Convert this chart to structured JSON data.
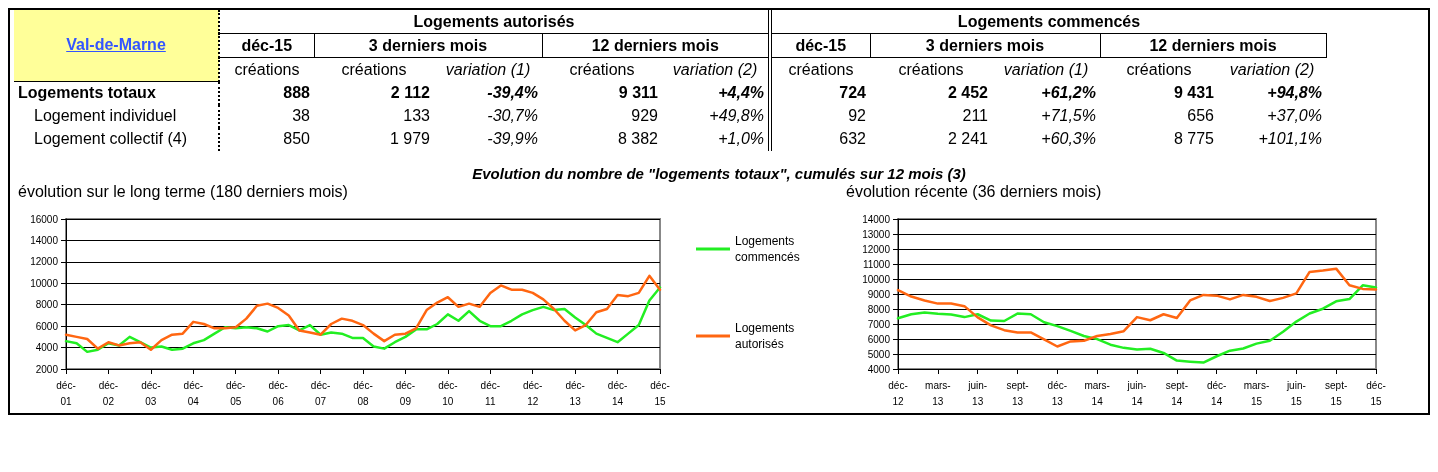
{
  "chart_data": [
    {
      "type": "other",
      "cell_labels": [
        [
          "Val-de-Marne",
          "Logements autorisés",
          null,
          null,
          null,
          null,
          "Logements commencés",
          null,
          null,
          null,
          null
        ],
        [
          null,
          "déc-15",
          "3 derniers mois",
          null,
          "12 derniers mois",
          null,
          "déc-15",
          "3 derniers mois",
          null,
          "12 derniers mois",
          null
        ],
        [
          null,
          "créations",
          "créations",
          "variation (1)",
          "créations",
          "variation (2)",
          "créations",
          "créations",
          "variation (1)",
          "créations",
          "variation (2)"
        ],
        [
          "Logements totaux",
          "888",
          "2 112",
          "-39,4%",
          "9 311",
          "+4,4%",
          "724",
          "2 452",
          "+61,2%",
          "9 431",
          "+94,8%"
        ],
        [
          "Logement individuel",
          "38",
          "133",
          "-30,7%",
          "929",
          "+49,8%",
          "92",
          "211",
          "+71,5%",
          "656",
          "+37,0%"
        ],
        [
          "Logement collectif (4)",
          "850",
          "1 979",
          "-39,9%",
          "8 382",
          "+1,0%",
          "632",
          "2 241",
          "+60,3%",
          "8 775",
          "+101,1%"
        ]
      ]
    },
    {
      "type": "line",
      "title": "Evolution du nombre de \"logements totaux\", cumulés sur 12 mois (3)",
      "subtitle": "évolution sur le long terme (180 derniers mois)",
      "x": [
        "2001-12",
        "2002-03",
        "2002-06",
        "2002-09",
        "2002-12",
        "2003-03",
        "2003-06",
        "2003-09",
        "2003-12",
        "2004-03",
        "2004-06",
        "2004-09",
        "2004-12",
        "2005-03",
        "2005-06",
        "2005-09",
        "2005-12",
        "2006-03",
        "2006-06",
        "2006-09",
        "2006-12",
        "2007-03",
        "2007-06",
        "2007-09",
        "2007-12",
        "2008-03",
        "2008-06",
        "2008-09",
        "2008-12",
        "2009-03",
        "2009-06",
        "2009-09",
        "2009-12",
        "2010-03",
        "2010-06",
        "2010-09",
        "2010-12",
        "2011-03",
        "2011-06",
        "2011-09",
        "2011-12",
        "2012-03",
        "2012-06",
        "2012-09",
        "2012-12",
        "2013-03",
        "2013-06",
        "2013-09",
        "2013-12",
        "2014-03",
        "2014-06",
        "2014-09",
        "2014-12",
        "2015-03",
        "2015-06",
        "2015-09",
        "2015-12"
      ],
      "series": [
        {
          "name": "Logements commencés",
          "color": "#22ee22",
          "values": [
            4600,
            4400,
            3600,
            3800,
            4400,
            4200,
            5000,
            4500,
            4000,
            4100,
            3800,
            3900,
            4400,
            4700,
            5300,
            5900,
            5800,
            5900,
            5800,
            5500,
            6000,
            6100,
            5600,
            6100,
            5200,
            5400,
            5300,
            4900,
            4900,
            4100,
            3900,
            4500,
            5000,
            5700,
            5700,
            6200,
            7100,
            6500,
            7400,
            6500,
            6000,
            6000,
            6500,
            7100,
            7500,
            7800,
            7500,
            7600,
            6800,
            6100,
            5300,
            4900,
            4500,
            5300,
            6100,
            8400,
            9600
          ]
        },
        {
          "name": "Logements autorisés",
          "color": "#ff6611",
          "values": [
            5200,
            5000,
            4800,
            3900,
            4500,
            4200,
            4400,
            4500,
            3800,
            4700,
            5200,
            5300,
            6400,
            6200,
            5800,
            5800,
            5900,
            6700,
            7900,
            8100,
            7700,
            7000,
            5600,
            5400,
            5200,
            6200,
            6700,
            6500,
            6100,
            5300,
            4600,
            5200,
            5300,
            5800,
            7500,
            8200,
            8700,
            7800,
            8100,
            7800,
            9100,
            9800,
            9400,
            9400,
            9100,
            8500,
            7600,
            6500,
            5600,
            6100,
            7300,
            7600,
            8900,
            8800,
            9100,
            10700,
            9400
          ]
        }
      ],
      "xlim": [
        "2001-12",
        "2015-12"
      ],
      "xticks": [
        {
          "value": "2001-12",
          "label": "déc-\n01"
        },
        {
          "value": "2002-12",
          "label": "déc-\n02"
        },
        {
          "value": "2003-12",
          "label": "déc-\n03"
        },
        {
          "value": "2004-12",
          "label": "déc-\n04"
        },
        {
          "value": "2005-12",
          "label": "déc-\n05"
        },
        {
          "value": "2006-12",
          "label": "déc-\n06"
        },
        {
          "value": "2007-12",
          "label": "déc-\n07"
        },
        {
          "value": "2008-12",
          "label": "déc-\n08"
        },
        {
          "value": "2009-12",
          "label": "déc-\n09"
        },
        {
          "value": "2010-12",
          "label": "déc-\n10"
        },
        {
          "value": "2011-12",
          "label": "déc-\n11"
        },
        {
          "value": "2012-12",
          "label": "déc-\n12"
        },
        {
          "value": "2013-12",
          "label": "déc-\n13"
        },
        {
          "value": "2014-12",
          "label": "déc-\n14"
        },
        {
          "value": "2015-12",
          "label": "déc-\n15"
        }
      ],
      "ylim": [
        2000,
        16000
      ],
      "yticks": [
        2000,
        4000,
        6000,
        8000,
        10000,
        12000,
        14000,
        16000
      ],
      "grid": "y",
      "legend": "right"
    },
    {
      "type": "line",
      "subtitle": "évolution récente (36 derniers mois)",
      "x": [
        "2012-12",
        "2013-01",
        "2013-02",
        "2013-03",
        "2013-04",
        "2013-05",
        "2013-06",
        "2013-07",
        "2013-08",
        "2013-09",
        "2013-10",
        "2013-11",
        "2013-12",
        "2014-01",
        "2014-02",
        "2014-03",
        "2014-04",
        "2014-05",
        "2014-06",
        "2014-07",
        "2014-08",
        "2014-09",
        "2014-10",
        "2014-11",
        "2014-12",
        "2015-01",
        "2015-02",
        "2015-03",
        "2015-04",
        "2015-05",
        "2015-06",
        "2015-07",
        "2015-08",
        "2015-09",
        "2015-10",
        "2015-11",
        "2015-12"
      ],
      "series": [
        {
          "color": "#22ee22",
          "values": [
            7380,
            7650,
            7760,
            7680,
            7630,
            7460,
            7650,
            7230,
            7200,
            7700,
            7650,
            7120,
            6860,
            6540,
            6200,
            5990,
            5620,
            5410,
            5300,
            5350,
            5070,
            4560,
            4490,
            4430,
            4850,
            5220,
            5370,
            5690,
            5880,
            6480,
            7160,
            7700,
            8020,
            8510,
            8660,
            9580,
            9430
          ]
        },
        {
          "color": "#ff6611",
          "values": [
            9260,
            8830,
            8570,
            8360,
            8360,
            8190,
            7440,
            6910,
            6590,
            6440,
            6440,
            5970,
            5500,
            5840,
            5880,
            6200,
            6330,
            6520,
            7460,
            7250,
            7650,
            7400,
            8570,
            8940,
            8890,
            8640,
            8940,
            8810,
            8530,
            8740,
            9040,
            10470,
            10560,
            10690,
            9580,
            9340,
            9300
          ]
        }
      ],
      "xlim": [
        "2012-12",
        "2015-12"
      ],
      "xticks": [
        {
          "value": "2012-12",
          "label": "déc-\n12"
        },
        {
          "value": "2013-03",
          "label": "mars-\n13"
        },
        {
          "value": "2013-06",
          "label": "juin-\n13"
        },
        {
          "value": "2013-09",
          "label": "sept-\n13"
        },
        {
          "value": "2013-12",
          "label": "déc-\n13"
        },
        {
          "value": "2014-03",
          "label": "mars-\n14"
        },
        {
          "value": "2014-06",
          "label": "juin-\n14"
        },
        {
          "value": "2014-09",
          "label": "sept-\n14"
        },
        {
          "value": "2014-12",
          "label": "déc-\n14"
        },
        {
          "value": "2015-03",
          "label": "mars-\n15"
        },
        {
          "value": "2015-06",
          "label": "juin-\n15"
        },
        {
          "value": "2015-09",
          "label": "sept-\n15"
        },
        {
          "value": "2015-12",
          "label": "déc-\n15"
        }
      ],
      "ylim": [
        4000,
        14000
      ],
      "yticks": [
        4000,
        5000,
        6000,
        7000,
        8000,
        9000,
        10000,
        11000,
        12000,
        13000,
        14000
      ],
      "grid": "y"
    }
  ]
}
